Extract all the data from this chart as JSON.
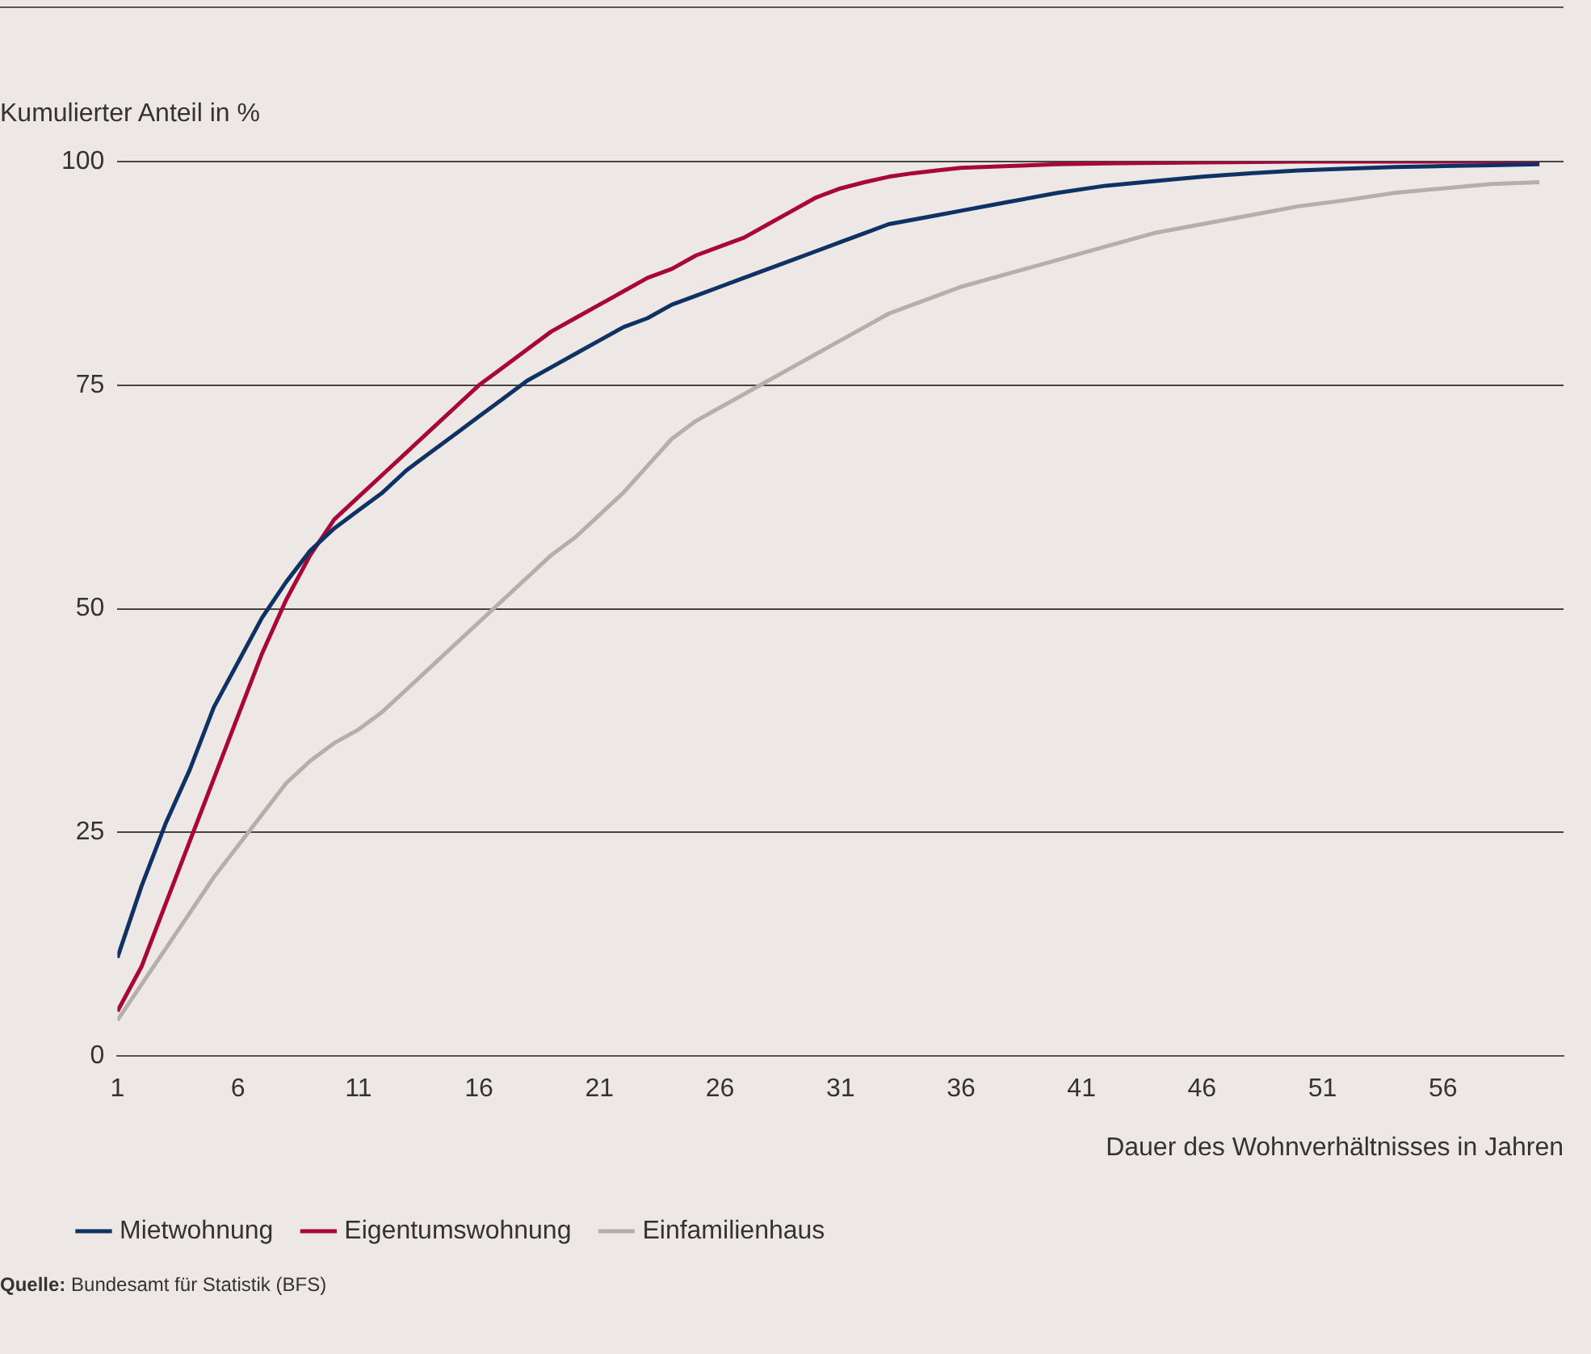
{
  "chart_data": {
    "type": "line",
    "ylabel": "Kumulierter Anteil in %",
    "xlabel": "Dauer des Wohnverhältnisses in Jahren",
    "xlim": [
      1,
      61
    ],
    "xticks": [
      1,
      6,
      11,
      16,
      21,
      26,
      31,
      36,
      41,
      46,
      51,
      56
    ],
    "ylim": [
      0,
      100
    ],
    "yticks": [
      0,
      25,
      50,
      75,
      100
    ],
    "grid": "y",
    "legend": "bottom left",
    "marker": "none",
    "line_style": "solid",
    "annotations": [
      "Quelle: Bundesamt für Statistik (BFS)"
    ],
    "series": [
      {
        "name": "Mietwohnung",
        "color": "#0e3263",
        "x": [
          1,
          2,
          3,
          4,
          5,
          6,
          7,
          8,
          9,
          10,
          11,
          12,
          13,
          14,
          15,
          16,
          17,
          18,
          19,
          20,
          21,
          22,
          23,
          24,
          25,
          26,
          27,
          28,
          29,
          30,
          31,
          32,
          33,
          34,
          35,
          36,
          38,
          40,
          42,
          44,
          46,
          48,
          50,
          52,
          54,
          56,
          58,
          60
        ],
        "values": [
          11,
          19,
          26,
          32,
          39,
          44,
          49,
          53,
          56.5,
          59,
          61,
          63,
          65.5,
          67.5,
          69.5,
          71.5,
          73.5,
          75.5,
          77,
          78.5,
          80,
          81.5,
          82.5,
          84,
          85,
          86,
          87,
          88,
          89,
          90,
          91,
          92,
          93,
          93.5,
          94,
          94.5,
          95.5,
          96.5,
          97.3,
          97.8,
          98.3,
          98.7,
          99,
          99.2,
          99.4,
          99.5,
          99.6,
          99.7
        ]
      },
      {
        "name": "Eigentumswohnung",
        "color": "#a8073a",
        "x": [
          1,
          2,
          3,
          4,
          5,
          6,
          7,
          8,
          9,
          10,
          11,
          12,
          13,
          14,
          15,
          16,
          17,
          18,
          19,
          20,
          21,
          22,
          23,
          24,
          25,
          26,
          27,
          28,
          29,
          30,
          31,
          32,
          33,
          34,
          35,
          36,
          38,
          40,
          42,
          46,
          50,
          60
        ],
        "values": [
          5,
          10,
          17,
          24,
          31,
          38,
          45,
          51,
          56,
          60,
          62.5,
          65,
          67.5,
          70,
          72.5,
          75,
          77,
          79,
          81,
          82.5,
          84,
          85.5,
          87,
          88,
          89.5,
          90.5,
          91.5,
          93,
          94.5,
          96,
          97,
          97.7,
          98.3,
          98.7,
          99,
          99.3,
          99.5,
          99.7,
          99.8,
          99.9,
          100,
          100
        ]
      },
      {
        "name": "Einfamilienhaus",
        "color": "#b3afab",
        "x": [
          1,
          2,
          3,
          4,
          5,
          6,
          7,
          8,
          9,
          10,
          11,
          12,
          13,
          14,
          15,
          16,
          17,
          18,
          19,
          20,
          21,
          22,
          23,
          24,
          25,
          26,
          27,
          28,
          29,
          30,
          31,
          32,
          33,
          34,
          35,
          36,
          38,
          40,
          42,
          44,
          46,
          48,
          50,
          52,
          54,
          56,
          58,
          60
        ],
        "values": [
          4,
          8,
          12,
          16,
          20,
          23.5,
          27,
          30.5,
          33,
          35,
          36.5,
          38.5,
          41,
          43.5,
          46,
          48.5,
          51,
          53.5,
          56,
          58,
          60.5,
          63,
          66,
          69,
          71,
          72.5,
          74,
          75.5,
          77,
          78.5,
          80,
          81.5,
          83,
          84,
          85,
          86,
          87.5,
          89,
          90.5,
          92,
          93,
          94,
          95,
          95.7,
          96.5,
          97,
          97.5,
          97.7
        ]
      }
    ]
  }
}
